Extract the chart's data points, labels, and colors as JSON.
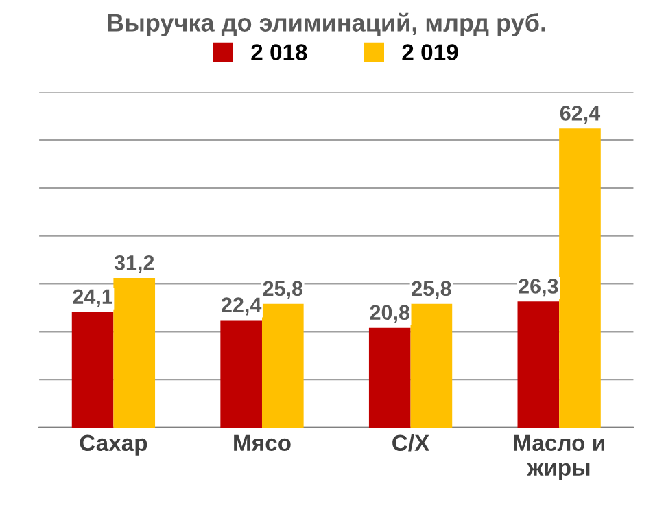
{
  "chart_data": {
    "type": "bar",
    "title": "Выручка до элиминаций, млрд руб.",
    "categories": [
      "Сахар",
      "Мясо",
      "С/Х",
      "Масло и\nжиры"
    ],
    "series": [
      {
        "name": "2 018",
        "color": "#c00000",
        "values": [
          24.1,
          22.4,
          20.8,
          26.3
        ],
        "value_labels": [
          "24,1",
          "22,4",
          "20,8",
          "26,3"
        ]
      },
      {
        "name": "2 019",
        "color": "#ffc000",
        "values": [
          31.2,
          25.8,
          25.8,
          62.4
        ],
        "value_labels": [
          "31,2",
          "25,8",
          "25,8",
          "62,4"
        ]
      }
    ],
    "ylim": [
      0,
      70
    ],
    "yticks": [
      {
        "value": 0,
        "label": null
      },
      {
        "value": 10,
        "label": null
      },
      {
        "value": 20,
        "label": null
      },
      {
        "value": 30,
        "label": null
      },
      {
        "value": 40,
        "label": null
      },
      {
        "value": 50,
        "label": null
      },
      {
        "value": 60,
        "label": null
      },
      {
        "value": 70,
        "label": null
      }
    ],
    "tick_labels": "x",
    "grid": "y",
    "legend": "top"
  }
}
